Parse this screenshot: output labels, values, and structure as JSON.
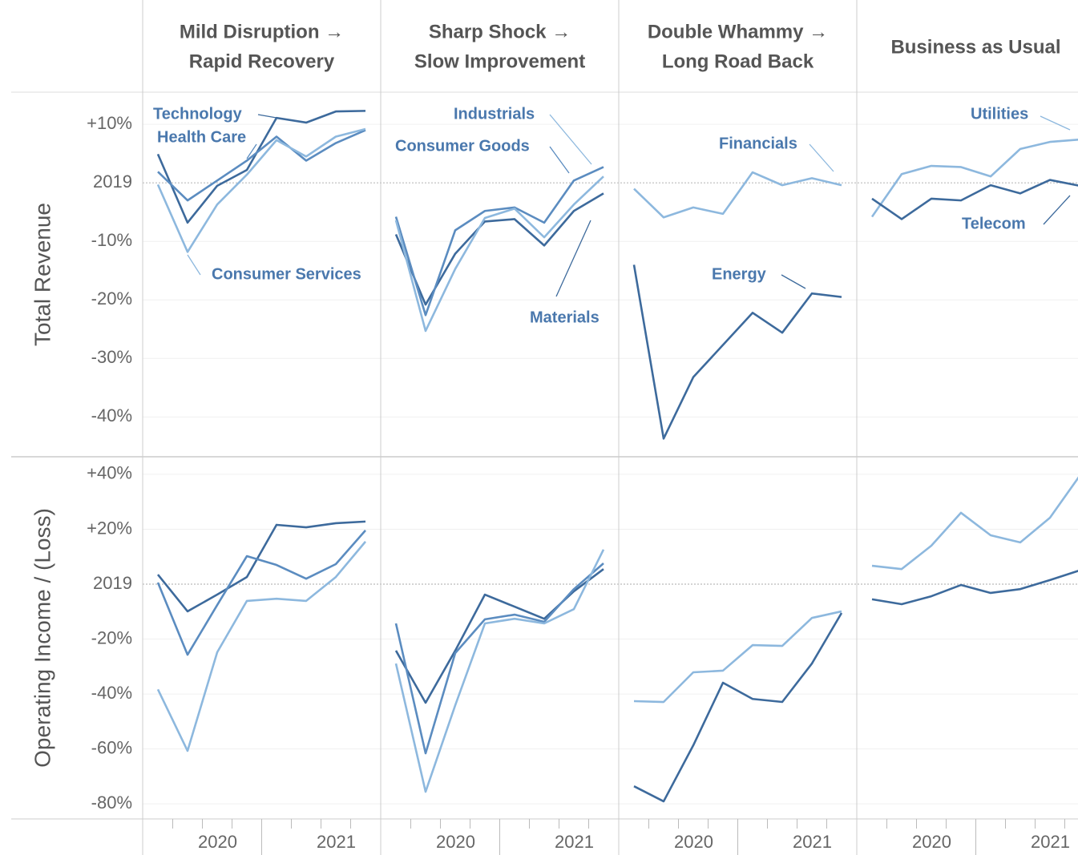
{
  "chart_data": {
    "type": "line",
    "row_labels": [
      "Total Revenue",
      "Operating Income / (Loss)"
    ],
    "categories": [
      null,
      null,
      null,
      null,
      null,
      null,
      null,
      null
    ],
    "x_groups": [
      "2020",
      "2021"
    ],
    "rows": [
      {
        "ylim": [
          -46.8,
          15.5
        ],
        "yticks": [
          {
            "value": 10,
            "label": "+10%"
          },
          {
            "value": 0,
            "label": "2019"
          },
          {
            "value": -10,
            "label": "-10%"
          },
          {
            "value": -20,
            "label": "-20%"
          },
          {
            "value": -30,
            "label": "-30%"
          },
          {
            "value": -40,
            "label": "-40%"
          }
        ]
      },
      {
        "ylim": [
          -85.5,
          46.4
        ],
        "yticks": [
          {
            "value": 40,
            "label": "+40%"
          },
          {
            "value": 20,
            "label": "+20%"
          },
          {
            "value": 0,
            "label": "2019"
          },
          {
            "value": -20,
            "label": "-20%"
          },
          {
            "value": -40,
            "label": "-40%"
          },
          {
            "value": -60,
            "label": "-60%"
          },
          {
            "value": -80,
            "label": "-80%"
          }
        ]
      }
    ],
    "panels": [
      {
        "title_lines": [
          "Mild Disruption →",
          "Rapid Recovery"
        ],
        "series": [
          {
            "name": "Technology",
            "color": "#3d6a9c",
            "revenue": [
              4.9,
              -6.8,
              -0.5,
              2.2,
              11.1,
              10.3,
              12.2,
              12.3
            ],
            "operating": [
              3.5,
              -9.9,
              -3.8,
              2.6,
              21.6,
              20.7,
              22.2,
              22.8
            ]
          },
          {
            "name": "Health Care",
            "color": "#5b8cc0",
            "revenue": [
              1.9,
              -3.0,
              0.4,
              3.8,
              7.9,
              3.8,
              6.8,
              9.0
            ],
            "operating": [
              0.6,
              -25.7,
              -7.6,
              10.2,
              7.0,
              2.0,
              7.3,
              19.6
            ]
          },
          {
            "name": "Consumer Services",
            "color": "#8db8de",
            "revenue": [
              -0.3,
              -11.8,
              -3.7,
              1.4,
              7.3,
              4.5,
              7.9,
              9.2
            ],
            "operating": [
              -38.3,
              -60.7,
              -24.8,
              -6.1,
              -5.3,
              -6.1,
              2.6,
              15.5
            ]
          }
        ]
      },
      {
        "title_lines": [
          "Sharp Shock →",
          "Slow Improvement"
        ],
        "series": [
          {
            "name": "Materials",
            "color": "#3d6a9c",
            "revenue": [
              -8.8,
              -20.8,
              -12.1,
              -6.6,
              -6.2,
              -10.7,
              -4.8,
              -1.8
            ],
            "operating": [
              -24.2,
              -43.2,
              -24.2,
              -3.8,
              -8.2,
              -12.6,
              -2.6,
              5.5
            ]
          },
          {
            "name": "Consumer Goods",
            "color": "#5b8cc0",
            "revenue": [
              -5.8,
              -22.6,
              -8.1,
              -4.8,
              -4.2,
              -6.8,
              0.4,
              2.7
            ],
            "operating": [
              -14.3,
              -61.6,
              -25.1,
              -12.8,
              -11.1,
              -13.7,
              -1.8,
              7.6
            ]
          },
          {
            "name": "Industrials",
            "color": "#8db8de",
            "revenue": [
              -6.4,
              -25.3,
              -14.7,
              -6.0,
              -4.4,
              -9.3,
              -3.7,
              1.1
            ],
            "operating": [
              -28.9,
              -75.6,
              -44.1,
              -14.3,
              -12.6,
              -14.3,
              -9.1,
              12.6
            ]
          }
        ]
      },
      {
        "title_lines": [
          "Double Whammy →",
          "Long Road Back"
        ],
        "series": [
          {
            "name": "Financials",
            "color": "#8db8de",
            "revenue": [
              -1.0,
              -5.9,
              -4.2,
              -5.3,
              1.8,
              -0.4,
              0.8,
              -0.4
            ],
            "operating": [
              -42.6,
              -42.9,
              -32.1,
              -31.5,
              -22.2,
              -22.5,
              -12.3,
              -9.9
            ]
          },
          {
            "name": "Energy",
            "color": "#3d6a9c",
            "revenue": [
              -14.0,
              -43.7,
              -33.2,
              -27.7,
              -22.2,
              -25.6,
              -18.9,
              -19.5
            ],
            "operating": [
              -73.6,
              -79.1,
              -58.7,
              -35.9,
              -41.8,
              -42.9,
              -28.9,
              -10.5
            ]
          }
        ]
      },
      {
        "title_lines": [
          "Business as Usual"
        ],
        "series": [
          {
            "name": "Utilities",
            "color": "#8db8de",
            "revenue": [
              -5.8,
              1.5,
              2.9,
              2.7,
              1.1,
              5.8,
              7.0,
              7.4
            ],
            "operating": [
              6.7,
              5.5,
              14.0,
              26.0,
              17.8,
              15.2,
              24.2,
              39.4
            ]
          },
          {
            "name": "Telecom",
            "color": "#3d6a9c",
            "revenue": [
              -2.7,
              -6.2,
              -2.7,
              -3.0,
              -0.4,
              -1.8,
              0.5,
              -0.5
            ],
            "operating": [
              -5.5,
              -7.3,
              -4.4,
              -0.3,
              -3.2,
              -1.8,
              1.5,
              5.0
            ]
          }
        ]
      }
    ]
  }
}
